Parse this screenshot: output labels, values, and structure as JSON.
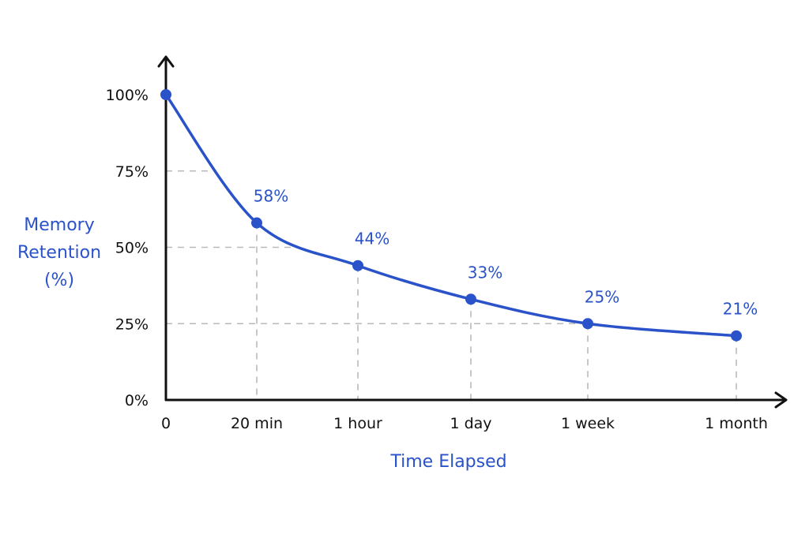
{
  "chart_data": {
    "type": "line",
    "x": [
      "0",
      "20 min",
      "1 hour",
      "1 day",
      "1 week",
      "1 month"
    ],
    "y": [
      100,
      58,
      44,
      33,
      25,
      21
    ],
    "data_labels": [
      "",
      "58%",
      "44%",
      "33%",
      "25%",
      "21%"
    ],
    "y_ticks": [
      {
        "value": 0,
        "label": "0%"
      },
      {
        "value": 25,
        "label": "25%"
      },
      {
        "value": 50,
        "label": "50%"
      },
      {
        "value": 75,
        "label": "75%"
      },
      {
        "value": 100,
        "label": "100%"
      }
    ],
    "ylim": [
      0,
      100
    ],
    "xlabel": "Time  Elapsed",
    "ylabel_lines": [
      "Memory",
      "Retention",
      "(%)"
    ],
    "grid": "dashed guide lines at selected points",
    "legend": "none",
    "colors": {
      "series": "#2a52c9",
      "axis": "#111111",
      "guide": "#b9b9b9"
    }
  }
}
